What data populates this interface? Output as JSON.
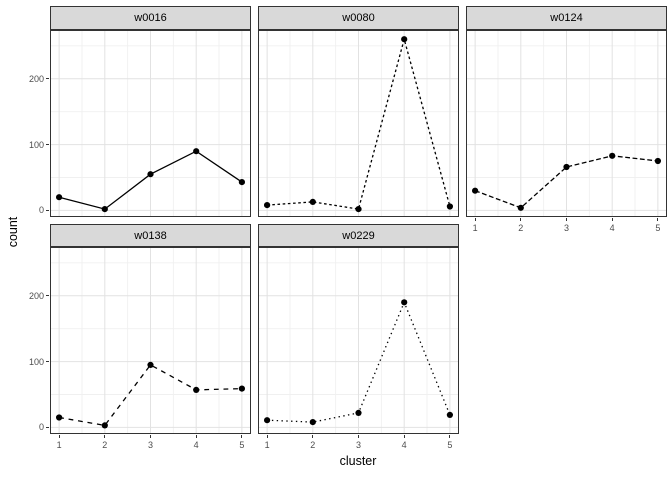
{
  "chart_data": {
    "type": "line",
    "title": "",
    "xlabel": "cluster",
    "ylabel": "count",
    "x": [
      1,
      2,
      3,
      4,
      5
    ],
    "xlim": [
      0.8,
      5.2
    ],
    "ylim": [
      -10,
      274
    ],
    "y_major_ticks": [
      0,
      100,
      200
    ],
    "y_minor_ticks": [
      50,
      150,
      250
    ],
    "x_minor_ticks": [
      1.5,
      2.5,
      3.5,
      4.5
    ],
    "grid": "major+minor",
    "legend_position": "none",
    "facet_layout": {
      "ncol": 3,
      "nrow": 2,
      "empty_cells": [
        {
          "row": 1,
          "col": 2
        }
      ]
    },
    "facets": [
      {
        "label": "w0016",
        "row": 0,
        "col": 0,
        "linetype": "solid",
        "show_x_axis": false,
        "values": [
          20,
          2,
          55,
          90,
          43
        ]
      },
      {
        "label": "w0080",
        "row": 0,
        "col": 1,
        "linetype": "22",
        "show_x_axis": false,
        "values": [
          8,
          13,
          2,
          260,
          6
        ]
      },
      {
        "label": "w0124",
        "row": 0,
        "col": 2,
        "linetype": "42",
        "show_x_axis": true,
        "values": [
          30,
          4,
          66,
          83,
          75
        ]
      },
      {
        "label": "w0138",
        "row": 1,
        "col": 0,
        "linetype": "44",
        "show_x_axis": true,
        "values": [
          15,
          3,
          95,
          57,
          59
        ]
      },
      {
        "label": "w0229",
        "row": 1,
        "col": 1,
        "linetype": "13",
        "show_x_axis": true,
        "values": [
          11,
          8,
          22,
          190,
          19
        ]
      }
    ],
    "colors": {
      "point_line": "#000000",
      "strip_fill": "#d9d9d9",
      "strip_border": "#333333",
      "panel_border": "#333333",
      "panel_background": "#ffffff",
      "grid_major": "#e2e2e2",
      "grid_minor": "#f0f0f0",
      "tick_label": "#4d4d4d",
      "tick_mark": "#333333",
      "axis_title": "#000000",
      "background": "#ffffff"
    }
  }
}
